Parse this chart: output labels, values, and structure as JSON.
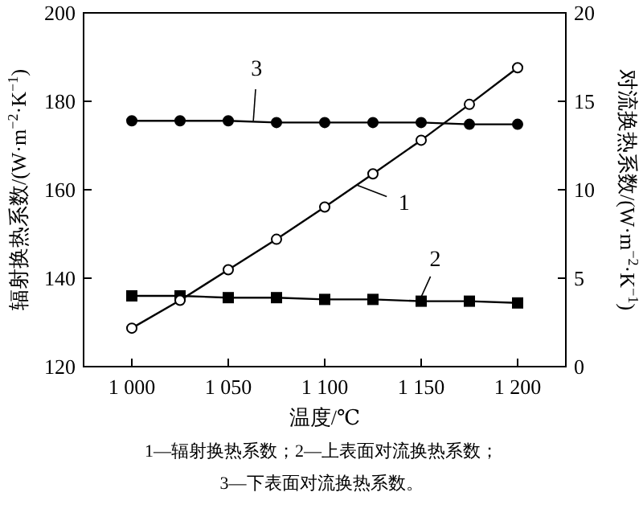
{
  "chart_data": {
    "type": "line",
    "xlabel": "温度/℃",
    "ylabel": "辐射换热系数/(W·m$^{−2}$·K$^{−1}$)",
    "y2label": "对流换热系数/(W·m$^{−2}$·K$^{−1}$)",
    "x": [
      1000,
      1025,
      1050,
      1075,
      1100,
      1125,
      1150,
      1175,
      1200
    ],
    "xlim": [
      975,
      1225
    ],
    "xticks": [
      {
        "value": 1000,
        "label": "1 000"
      },
      {
        "value": 1050,
        "label": "1 050"
      },
      {
        "value": 1100,
        "label": "1 100"
      },
      {
        "value": 1150,
        "label": "1 150"
      },
      {
        "value": 1200,
        "label": "1 200"
      }
    ],
    "ylim": [
      120,
      200
    ],
    "yticks": [
      120,
      140,
      160,
      180,
      200
    ],
    "y2lim": [
      0,
      20
    ],
    "y2ticks": [
      0,
      5,
      10,
      15,
      20
    ],
    "grid": false,
    "line_style": "solid",
    "series": [
      {
        "color": "#000000",
        "marker": "circle",
        "values": [
          128.7,
          135,
          141.9,
          148.8,
          156.1,
          163.6,
          171.2,
          179.3,
          187.6
        ]
      },
      {
        "color": "#000000",
        "marker": "square",
        "axis": "y2",
        "values": [
          4.0,
          4.0,
          3.9,
          3.9,
          3.8,
          3.8,
          3.7,
          3.7,
          3.6
        ]
      },
      {
        "color": "#000000",
        "marker": "circle",
        "axis": "y2",
        "values": [
          13.9,
          13.9,
          13.9,
          13.8,
          13.8,
          13.8,
          13.8,
          13.7,
          13.7
        ]
      }
    ],
    "annotations": [
      {
        "text": "3",
        "x": 1063,
        "y": 175.6
      },
      {
        "text": "1",
        "x": 1117,
        "y": 161
      },
      {
        "text": "2",
        "x": 1149,
        "y": 134.8
      },
      "1—辐射换热系数；2—上表面对流换热系数；",
      "3—下表面对流换热系数。"
    ]
  }
}
